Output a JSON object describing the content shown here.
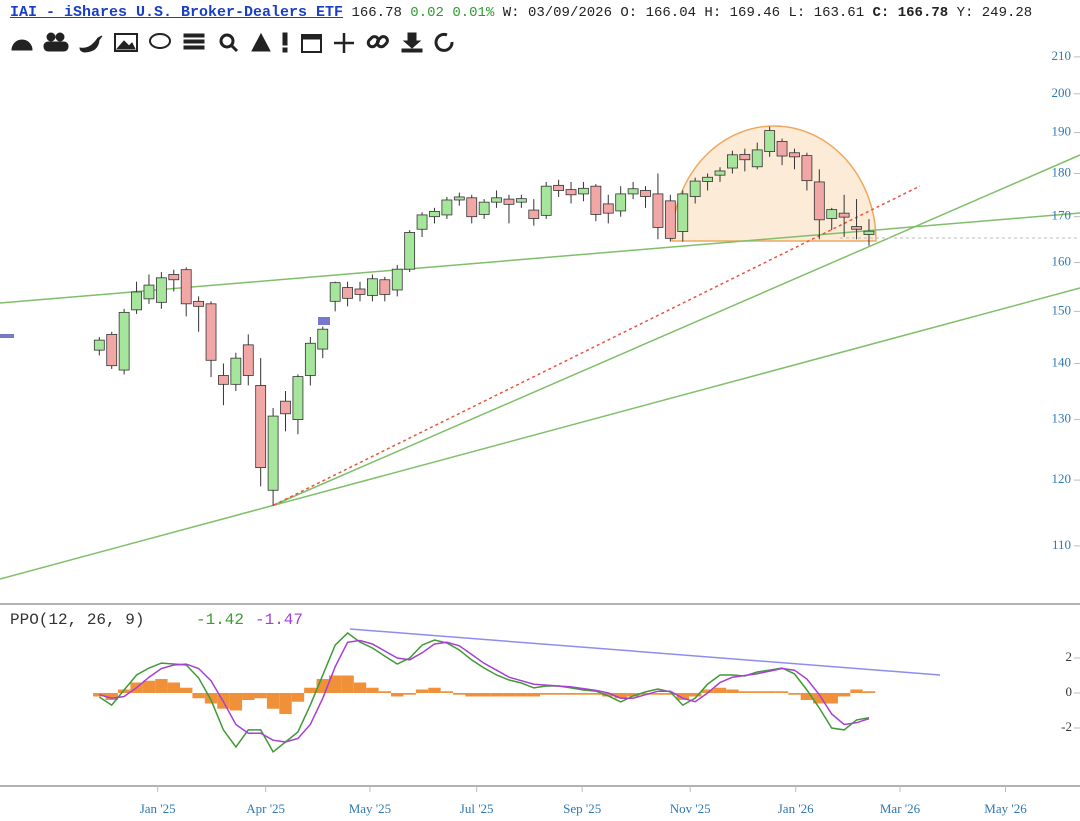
{
  "header": {
    "title": "IAI - iShares U.S. Broker-Dealers ETF",
    "change": "0.02",
    "change_pct": "0.01%",
    "date_label": "W:",
    "date": "03/09/2026",
    "open_label": "O:",
    "high_label": "H:",
    "low_label": "L:",
    "close_label": "C:",
    "y_label": "Y:",
    "y_value": "249.28"
  },
  "chart_data": [
    {
      "type": "candlestick",
      "x": [
        0,
        1,
        2,
        3,
        4,
        5,
        6,
        7,
        8,
        9,
        10,
        11,
        12,
        13,
        14,
        15,
        16,
        17,
        18,
        19,
        20,
        21,
        22,
        23,
        24,
        25,
        26,
        27,
        28,
        29,
        30,
        31,
        32,
        33,
        34,
        35,
        36,
        37,
        38,
        39,
        40,
        41,
        42,
        43,
        44,
        45,
        46,
        47,
        48,
        49,
        50,
        51,
        52,
        53,
        54,
        55,
        56,
        57,
        58,
        59,
        60,
        61,
        62
      ],
      "open": [
        142.5,
        145.5,
        138.8,
        150.3,
        152.5,
        151.8,
        157.5,
        158.5,
        152,
        151.5,
        137.8,
        136.2,
        143.5,
        136,
        118.4,
        133.2,
        130,
        137.8,
        142.7,
        152,
        154.8,
        154.5,
        153.2,
        156.4,
        154.3,
        158.6,
        167.2,
        170,
        170.4,
        173.8,
        174.3,
        170.5,
        173.3,
        174,
        173.3,
        171.5,
        170.3,
        177.2,
        176.2,
        175.2,
        177,
        172.9,
        171.3,
        175.2,
        176,
        175.2,
        173.6,
        166.7,
        174.6,
        178.1,
        179.6,
        181.3,
        184.6,
        181.6,
        185.3,
        187.8,
        185,
        184.3,
        178,
        169.6,
        170.8,
        167.8,
        166.04
      ],
      "high": [
        145,
        146,
        150.5,
        156,
        157.5,
        158,
        158.5,
        159,
        153,
        152,
        140,
        142,
        145.5,
        141,
        132,
        135,
        138,
        145,
        147,
        156,
        156,
        156,
        157.5,
        157,
        159.5,
        167,
        171,
        172,
        174.5,
        175.5,
        175,
        174,
        176,
        175,
        175,
        174,
        178,
        178.5,
        178,
        178,
        177.5,
        175,
        177,
        178,
        177,
        180,
        175,
        176,
        179,
        180,
        181.5,
        185.5,
        186,
        187.5,
        191.5,
        188.5,
        186,
        185,
        181,
        172,
        175,
        174,
        169.46
      ],
      "low": [
        141.5,
        139,
        138,
        149.5,
        151.5,
        150.5,
        154,
        149,
        146,
        137.5,
        132.5,
        135,
        136,
        119,
        116,
        128,
        127.5,
        136,
        141,
        150,
        151,
        152,
        152,
        152,
        153,
        158,
        165.5,
        168.5,
        169.5,
        172.5,
        168.5,
        169.5,
        172,
        168.5,
        172,
        168,
        169.5,
        174.5,
        173,
        173.5,
        169,
        168.5,
        170,
        174,
        172,
        165,
        164.5,
        164.5,
        173,
        176,
        178,
        180,
        180.5,
        181,
        184,
        182,
        181,
        176,
        165,
        167,
        165.5,
        165,
        163.61
      ],
      "close": [
        144.4,
        139.6,
        149.8,
        153.9,
        155.3,
        156.8,
        156.4,
        151.5,
        151,
        140.6,
        136.2,
        141,
        137.8,
        122,
        130.6,
        131,
        137.6,
        143.8,
        146.5,
        155.8,
        152.6,
        153.4,
        156.6,
        153.4,
        158.6,
        166.5,
        170.4,
        171.2,
        173.8,
        174.5,
        170,
        173.3,
        174.3,
        172.8,
        174.1,
        169.6,
        177,
        176,
        175,
        176.5,
        170.5,
        170.8,
        175.2,
        176.4,
        174.6,
        167.6,
        165.2,
        175.2,
        178.2,
        179.1,
        180.6,
        184.5,
        183.3,
        185.7,
        190.5,
        184.2,
        184,
        178.3,
        169.3,
        171.6,
        169.9,
        167.2,
        166.78
      ],
      "up_color": "#a6e59c",
      "down_color": "#f2a7a7",
      "log_scale": true,
      "ylim": [
        102,
        220.5
      ],
      "yticks": [
        110,
        120,
        130,
        140,
        150,
        160,
        170,
        180,
        190,
        200,
        210
      ],
      "xlim": [
        -8,
        79
      ],
      "xticks": [
        {
          "value": 4.7,
          "label": "Jan '25"
        },
        {
          "value": 13.4,
          "label": "Apr '25"
        },
        {
          "value": 21.8,
          "label": "May '25"
        },
        {
          "value": 30.4,
          "label": "Jul '25"
        },
        {
          "value": 38.9,
          "label": "Sep '25"
        },
        {
          "value": 47.6,
          "label": "Nov '25"
        },
        {
          "value": 56.1,
          "label": "Jan '26"
        },
        {
          "value": 64.5,
          "label": "Mar '26"
        },
        {
          "value": 73,
          "label": "May '26"
        }
      ]
    },
    {
      "type": "line",
      "title": "PPO(12, 26, 9)",
      "x": [
        0,
        1,
        2,
        3,
        4,
        5,
        6,
        7,
        8,
        9,
        10,
        11,
        12,
        13,
        14,
        15,
        16,
        17,
        18,
        19,
        20,
        21,
        22,
        23,
        24,
        25,
        26,
        27,
        28,
        29,
        30,
        31,
        32,
        33,
        34,
        35,
        36,
        37,
        38,
        39,
        40,
        41,
        42,
        43,
        44,
        45,
        46,
        47,
        48,
        49,
        50,
        51,
        52,
        53,
        54,
        55,
        56,
        57,
        58,
        59,
        60,
        61,
        62
      ],
      "series": [
        {
          "style": "bar",
          "color": "#f0913a",
          "values": [
            -0.2,
            -0.4,
            0.2,
            0.6,
            0.7,
            0.8,
            0.6,
            0.3,
            -0.3,
            -0.6,
            -0.9,
            -1.0,
            -0.4,
            -0.3,
            -0.9,
            -1.2,
            -0.5,
            0.3,
            0.8,
            1.0,
            1.0,
            0.6,
            0.3,
            0.1,
            -0.2,
            -0.1,
            0.2,
            0.3,
            0.1,
            -0.1,
            -0.2,
            -0.2,
            -0.2,
            -0.2,
            -0.2,
            -0.2,
            -0.1,
            -0.1,
            -0.1,
            -0.1,
            -0.1,
            -0.2,
            -0.3,
            -0.2,
            -0.1,
            -0.1,
            -0.1,
            -0.4,
            -0.2,
            0.2,
            0.3,
            0.2,
            0.1,
            0.1,
            0.1,
            0.1,
            -0.1,
            -0.4,
            -0.6,
            -0.6,
            -0.2,
            0.2,
            0.1
          ]
        },
        {
          "style": "line",
          "color": "#3f9a34",
          "values": [
            -0.23,
            -0.69,
            0.17,
            1.03,
            1.43,
            1.71,
            1.66,
            1.6,
            0.86,
            -0.4,
            -2.11,
            -3.09,
            -2.11,
            -2.11,
            -3.37,
            -2.8,
            -2.23,
            -0.69,
            1.03,
            2.74,
            3.43,
            2.91,
            2.57,
            2.11,
            1.66,
            2.0,
            2.74,
            3.03,
            2.86,
            2.46,
            1.89,
            1.43,
            1.03,
            0.74,
            0.57,
            0.29,
            0.4,
            0.4,
            0.29,
            0.17,
            0.11,
            -0.17,
            -0.51,
            -0.17,
            0.06,
            0.23,
            0.06,
            -0.69,
            -0.29,
            0.51,
            1.03,
            1.03,
            0.97,
            1.2,
            1.31,
            1.43,
            1.09,
            0.17,
            -0.86,
            -2.0,
            -2.11,
            -1.54,
            -1.42
          ]
        },
        {
          "style": "line",
          "color": "#a63fd6",
          "values": [
            -0.1,
            -0.3,
            -0.2,
            0.3,
            0.9,
            1.4,
            1.6,
            1.65,
            1.4,
            0.7,
            -0.5,
            -1.8,
            -2.3,
            -2.3,
            -2.7,
            -2.8,
            -2.6,
            -1.8,
            -0.3,
            1.5,
            2.9,
            3.0,
            2.8,
            2.4,
            2.0,
            1.9,
            2.3,
            2.8,
            2.9,
            2.7,
            2.2,
            1.7,
            1.3,
            0.9,
            0.7,
            0.5,
            0.45,
            0.4,
            0.35,
            0.25,
            0.15,
            0.0,
            -0.3,
            -0.3,
            -0.1,
            0.1,
            0.1,
            -0.3,
            -0.5,
            0.0,
            0.6,
            0.9,
            1.0,
            1.1,
            1.25,
            1.4,
            1.3,
            0.8,
            -0.1,
            -1.2,
            -1.8,
            -1.7,
            -1.47
          ]
        }
      ],
      "ylim": [
        -5.26,
        5.03
      ],
      "yticks": [
        -2,
        0,
        2
      ],
      "xlim": [
        -8,
        79
      ]
    }
  ]
}
